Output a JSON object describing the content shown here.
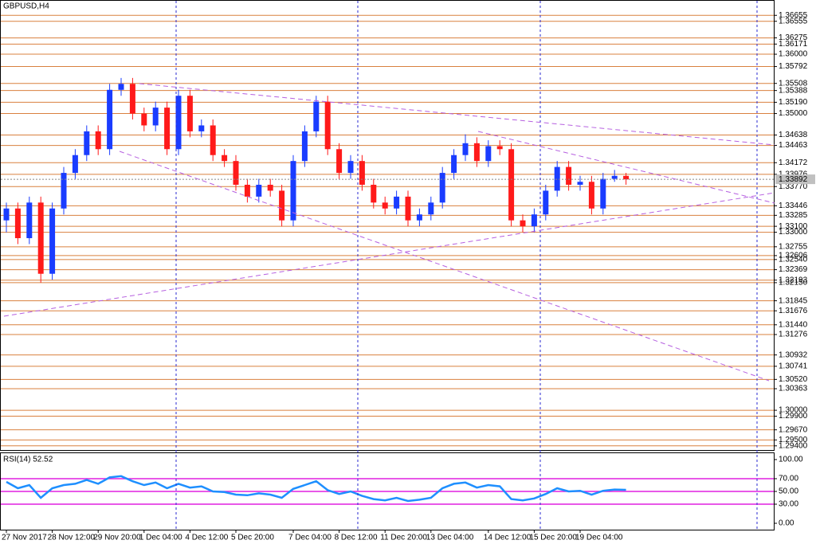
{
  "chart_data": [
    {
      "type": "candlestick",
      "title": "GBPUSD,H4",
      "categories": [
        "27 Nov 2017",
        null,
        null,
        null,
        "28 Nov 12:00",
        null,
        null,
        null,
        "29 Nov 20:00",
        null,
        null,
        null,
        "1 Dec 04:00",
        null,
        null,
        null,
        "4 Dec 12:00",
        null,
        null,
        null,
        "5 Dec 20:00",
        null,
        null,
        null,
        null,
        "7 Dec 04:00",
        null,
        null,
        null,
        "8 Dec 12:00",
        null,
        null,
        null,
        "11 Dec 20:00",
        null,
        null,
        null,
        "13 Dec 04:00",
        null,
        null,
        null,
        null,
        "14 Dec 12:00",
        null,
        null,
        null,
        "15 Dec 20:00",
        null,
        null,
        null,
        "19 Dec 04:00",
        null,
        null,
        null,
        null
      ],
      "open": [
        1.332,
        1.334,
        1.329,
        1.335,
        1.323,
        1.334,
        1.34,
        1.343,
        1.347,
        1.344,
        1.354,
        1.355,
        1.35,
        1.348,
        1.351,
        1.344,
        1.353,
        1.347,
        1.348,
        1.343,
        1.342,
        1.338,
        1.336,
        1.338,
        1.337,
        1.332,
        1.342,
        1.347,
        1.352,
        1.344,
        1.34,
        1.342,
        1.338,
        1.335,
        1.334,
        1.336,
        1.332,
        1.333,
        1.335,
        1.34,
        1.343,
        1.345,
        1.342,
        1.3445,
        1.344,
        1.332,
        1.331,
        1.333,
        1.337,
        1.341,
        1.338,
        1.3385,
        1.334,
        1.339,
        1.3395
      ],
      "high": [
        1.335,
        1.335,
        1.336,
        1.336,
        1.335,
        1.341,
        1.344,
        1.348,
        1.348,
        1.355,
        1.356,
        1.356,
        1.351,
        1.352,
        1.352,
        1.354,
        1.354,
        1.349,
        1.349,
        1.344,
        1.343,
        1.339,
        1.339,
        1.339,
        1.338,
        1.343,
        1.348,
        1.353,
        1.353,
        1.345,
        1.343,
        1.343,
        1.339,
        1.336,
        1.337,
        1.337,
        1.334,
        1.336,
        1.341,
        1.344,
        1.3465,
        1.346,
        1.3455,
        1.3455,
        1.345,
        1.333,
        1.334,
        1.338,
        1.342,
        1.342,
        1.3395,
        1.3395,
        1.34,
        1.3405,
        1.34
      ],
      "low": [
        1.33,
        1.328,
        1.328,
        1.3215,
        1.322,
        1.333,
        1.339,
        1.342,
        1.343,
        1.343,
        1.353,
        1.349,
        1.347,
        1.347,
        1.343,
        1.343,
        1.346,
        1.346,
        1.342,
        1.341,
        1.337,
        1.335,
        1.335,
        1.336,
        1.331,
        1.331,
        1.341,
        1.346,
        1.343,
        1.339,
        1.339,
        1.337,
        1.334,
        1.333,
        1.333,
        1.331,
        1.331,
        1.332,
        1.334,
        1.339,
        1.342,
        1.341,
        1.341,
        1.343,
        1.331,
        1.33,
        1.33,
        1.332,
        1.336,
        1.337,
        1.337,
        1.333,
        1.333,
        1.3385,
        1.338
      ],
      "close": [
        1.334,
        1.329,
        1.335,
        1.323,
        1.334,
        1.34,
        1.343,
        1.347,
        1.344,
        1.354,
        1.355,
        1.35,
        1.348,
        1.351,
        1.344,
        1.353,
        1.347,
        1.348,
        1.343,
        1.342,
        1.338,
        1.336,
        1.338,
        1.337,
        1.332,
        1.342,
        1.347,
        1.352,
        1.344,
        1.34,
        1.342,
        1.338,
        1.335,
        1.334,
        1.336,
        1.332,
        1.333,
        1.335,
        1.34,
        1.343,
        1.345,
        1.342,
        1.3445,
        1.344,
        1.332,
        1.331,
        1.333,
        1.337,
        1.341,
        1.338,
        1.3385,
        1.334,
        1.339,
        1.3395,
        1.3389
      ],
      "up_color": "#1a3cff",
      "down_color": "#ff1a1a",
      "ylim": [
        1.2933,
        1.369
      ],
      "yticks": [
        1.36655,
        1.36555,
        1.36275,
        1.36171,
        {
          "value": 1.36,
          "label": "1.36000"
        },
        1.35792,
        1.35508,
        1.35388,
        {
          "value": 1.3519,
          "label": "1.35190"
        },
        {
          "value": 1.35,
          "label": "1.35000"
        },
        1.34638,
        1.34463,
        1.34172,
        1.33976,
        {
          "value": 1.3377,
          "label": "1.33770"
        },
        1.33446,
        1.33285,
        {
          "value": 1.331,
          "label": "1.33100"
        },
        {
          "value": 1.33,
          "label": "1.33000"
        },
        1.32755,
        1.32606,
        {
          "value": 1.3254,
          "label": "1.32540"
        },
        1.32369,
        1.32193,
        {
          "value": 1.3215,
          "label": "1.32150"
        },
        1.31845,
        1.31676,
        {
          "value": 1.3144,
          "label": "1.31440"
        },
        1.31276,
        1.30932,
        1.30741,
        {
          "value": 1.3052,
          "label": "1.30520"
        },
        1.30363,
        {
          "value": 1.3,
          "label": "1.30000"
        },
        {
          "value": 1.299,
          "label": "1.29900"
        },
        {
          "value": 1.2967,
          "label": "1.29670"
        },
        {
          "value": 1.295,
          "label": "1.29500"
        },
        {
          "value": 1.294,
          "label": "1.29400"
        }
      ],
      "grid": true,
      "grid_color": "#d9803f",
      "last_price": 1.33892
    },
    {
      "type": "line",
      "title": "RSI(14) 52.52",
      "color": "#1e8fff",
      "values": [
        65,
        55,
        60,
        40,
        55,
        60,
        62,
        68,
        62,
        72,
        74,
        66,
        60,
        64,
        55,
        62,
        56,
        58,
        50,
        49,
        45,
        44,
        47,
        45,
        40,
        54,
        60,
        66,
        52,
        46,
        50,
        43,
        38,
        36,
        40,
        35,
        37,
        40,
        55,
        62,
        64,
        56,
        60,
        58,
        38,
        36,
        39,
        46,
        55,
        50,
        51,
        45,
        51,
        53,
        52.52
      ],
      "ylim": [
        -10,
        110
      ],
      "yticks": [
        {
          "value": 100,
          "label": "100.00"
        },
        {
          "value": 70,
          "label": "70.00"
        },
        {
          "value": 50,
          "label": "50.00"
        },
        {
          "value": 30,
          "label": "30.00"
        },
        {
          "value": 0,
          "label": "0.00"
        }
      ],
      "levels": [
        70,
        50,
        30
      ],
      "level_color": "#e020e0"
    }
  ]
}
